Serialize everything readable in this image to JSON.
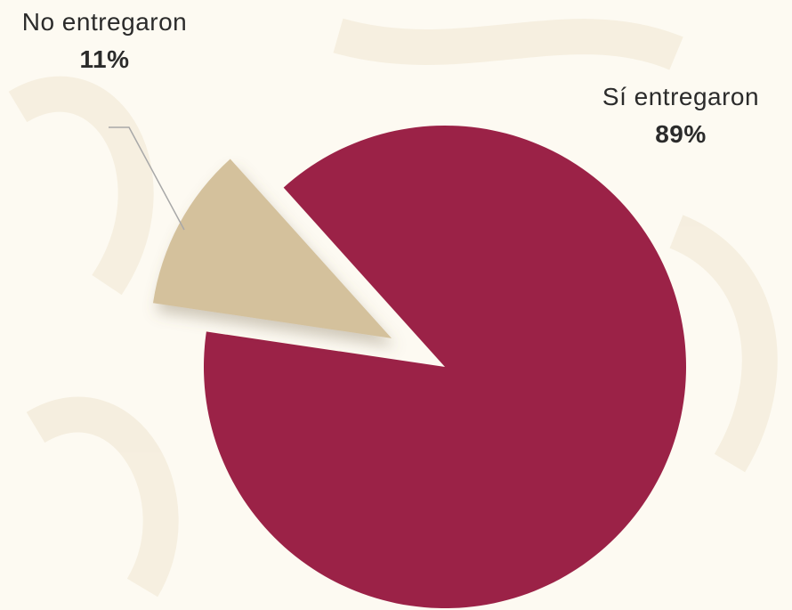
{
  "chart_data": {
    "type": "pie",
    "categories": [
      "Sí entregaron",
      "No entregaron"
    ],
    "values": [
      89,
      11
    ],
    "value_labels": [
      "89%",
      "11%"
    ],
    "colors": [
      "#9b2247",
      "#d4c19c"
    ],
    "explode": [
      false,
      true
    ]
  }
}
